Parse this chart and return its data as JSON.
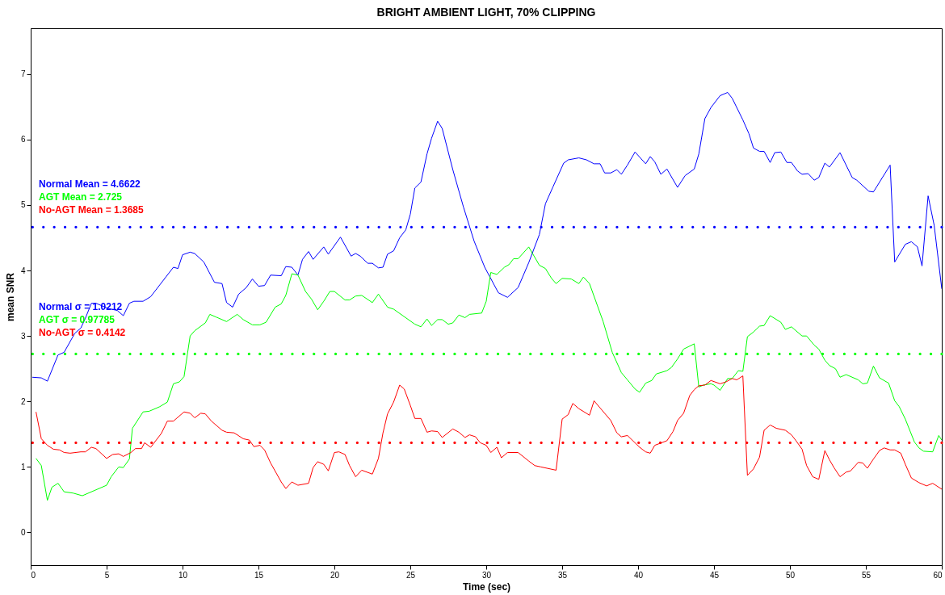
{
  "chart_data": {
    "type": "line",
    "title": "BRIGHT AMBIENT LIGHT, 70% CLIPPING",
    "xlabel": "Time (sec)",
    "ylabel": "mean SNR",
    "xlim": [
      0,
      60
    ],
    "ylim": [
      -0.5,
      7.7
    ],
    "xticks": [
      0,
      5,
      10,
      15,
      20,
      25,
      30,
      35,
      40,
      45,
      50,
      55,
      60
    ],
    "yticks": [
      0,
      1,
      2,
      3,
      4,
      5,
      6,
      7
    ],
    "grid": false,
    "legend": false,
    "marker": "none",
    "line_style": "solid",
    "series": [
      {
        "color": "#0000ff",
        "x": [
          0.1,
          0.7,
          1.1,
          1.8,
          2.2,
          2.9,
          3.3,
          3.6,
          4.0,
          4.3,
          5.1,
          5.7,
          6.1,
          6.5,
          6.8,
          7.4,
          7.9,
          8.5,
          9.4,
          9.7,
          10.0,
          10.5,
          10.8,
          11.4,
          12.1,
          12.6,
          12.9,
          13.3,
          13.7,
          14.2,
          14.6,
          15.0,
          15.4,
          15.8,
          16.5,
          16.8,
          17.2,
          17.6,
          17.9,
          18.3,
          18.6,
          19.3,
          19.6,
          20.4,
          21.1,
          21.4,
          21.7,
          22.2,
          22.5,
          22.9,
          23.2,
          23.5,
          23.9,
          24.3,
          24.7,
          25.0,
          25.3,
          25.7,
          26.1,
          26.4,
          26.8,
          27.1,
          27.8,
          28.5,
          29.2,
          29.9,
          30.8,
          31.4,
          32.1,
          32.8,
          33.5,
          33.9,
          34.4,
          35.1,
          35.4,
          36.1,
          36.6,
          37.1,
          37.5,
          37.8,
          38.2,
          38.6,
          38.9,
          39.3,
          39.8,
          40.5,
          40.8,
          41.1,
          41.5,
          41.9,
          42.6,
          43.1,
          43.7,
          44.0,
          44.4,
          44.8,
          45.4,
          45.9,
          46.2,
          46.9,
          47.3,
          47.6,
          48.0,
          48.3,
          48.7,
          49.0,
          49.4,
          49.8,
          50.1,
          50.5,
          50.8,
          51.2,
          51.6,
          51.9,
          52.3,
          52.6,
          53.3,
          54.1,
          54.4,
          55.2,
          55.5,
          56.6,
          56.9,
          57.6,
          58.0,
          58.4,
          58.7,
          59.1,
          59.5,
          60
        ],
        "values": [
          2.37,
          2.36,
          2.31,
          2.71,
          2.75,
          3.04,
          3.12,
          3.27,
          3.5,
          3.5,
          3.42,
          3.39,
          3.31,
          3.5,
          3.53,
          3.53,
          3.6,
          3.78,
          4.05,
          4.03,
          4.24,
          4.28,
          4.26,
          4.13,
          3.82,
          3.8,
          3.51,
          3.44,
          3.64,
          3.74,
          3.87,
          3.76,
          3.77,
          3.93,
          3.92,
          4.06,
          4.05,
          3.93,
          4.17,
          4.29,
          4.17,
          4.36,
          4.25,
          4.51,
          4.22,
          4.26,
          4.22,
          4.11,
          4.11,
          4.04,
          4.05,
          4.25,
          4.3,
          4.5,
          4.62,
          4.86,
          5.26,
          5.35,
          5.78,
          6.02,
          6.28,
          6.17,
          5.54,
          4.97,
          4.45,
          4.05,
          3.66,
          3.59,
          3.74,
          4.12,
          4.55,
          5.02,
          5.28,
          5.64,
          5.69,
          5.72,
          5.69,
          5.63,
          5.63,
          5.49,
          5.49,
          5.54,
          5.47,
          5.61,
          5.81,
          5.63,
          5.74,
          5.66,
          5.47,
          5.55,
          5.27,
          5.45,
          5.55,
          5.78,
          6.32,
          6.49,
          6.67,
          6.72,
          6.63,
          6.3,
          6.09,
          5.87,
          5.82,
          5.82,
          5.65,
          5.8,
          5.81,
          5.65,
          5.65,
          5.52,
          5.47,
          5.48,
          5.38,
          5.42,
          5.64,
          5.58,
          5.8,
          5.42,
          5.38,
          5.21,
          5.2,
          5.61,
          4.13,
          4.4,
          4.44,
          4.36,
          4.07,
          5.14,
          4.69,
          3.72
        ]
      },
      {
        "color": "#00ff00",
        "x": [
          0.35,
          0.7,
          1.1,
          1.4,
          1.8,
          2.2,
          2.8,
          3.4,
          4.2,
          5.0,
          5.3,
          5.8,
          6.1,
          6.5,
          6.7,
          7.4,
          7.8,
          8.5,
          9.0,
          9.4,
          9.8,
          10.1,
          10.5,
          10.8,
          11.5,
          11.8,
          12.2,
          12.9,
          13.6,
          14.0,
          14.6,
          15.1,
          15.5,
          16.1,
          16.5,
          16.8,
          17.2,
          17.6,
          18.1,
          18.5,
          18.9,
          19.3,
          19.7,
          20.0,
          20.7,
          21.0,
          21.4,
          21.8,
          22.5,
          22.9,
          23.5,
          23.9,
          25.3,
          25.7,
          26.1,
          26.4,
          26.8,
          27.1,
          27.5,
          27.8,
          28.2,
          28.6,
          28.9,
          29.7,
          30.0,
          30.3,
          30.7,
          31.2,
          31.5,
          31.8,
          32.1,
          32.8,
          33.5,
          33.9,
          34.3,
          34.6,
          35.0,
          35.6,
          36.1,
          36.4,
          36.8,
          37.7,
          38.3,
          38.9,
          39.3,
          39.8,
          40.1,
          40.5,
          40.9,
          41.2,
          41.9,
          42.2,
          42.6,
          43.0,
          43.7,
          44.0,
          44.3,
          44.8,
          45.0,
          45.4,
          45.9,
          46.2,
          46.6,
          46.9,
          47.2,
          47.6,
          48.0,
          48.3,
          48.7,
          49.4,
          49.7,
          50.1,
          50.8,
          51.1,
          51.6,
          51.9,
          52.3,
          52.6,
          53.0,
          53.3,
          53.7,
          54.5,
          54.8,
          55.1,
          55.5,
          55.9,
          56.5,
          56.9,
          57.2,
          57.6,
          58.2,
          58.5,
          58.8,
          59.4,
          59.8,
          60
        ],
        "values": [
          1.13,
          1.02,
          0.49,
          0.69,
          0.75,
          0.62,
          0.6,
          0.56,
          0.64,
          0.72,
          0.85,
          1.0,
          0.99,
          1.12,
          1.59,
          1.84,
          1.85,
          1.92,
          1.99,
          2.27,
          2.3,
          2.38,
          3.0,
          3.08,
          3.2,
          3.33,
          3.29,
          3.22,
          3.33,
          3.25,
          3.17,
          3.17,
          3.21,
          3.44,
          3.49,
          3.62,
          3.95,
          3.93,
          3.68,
          3.56,
          3.4,
          3.53,
          3.68,
          3.68,
          3.55,
          3.55,
          3.61,
          3.62,
          3.51,
          3.64,
          3.44,
          3.41,
          3.18,
          3.14,
          3.26,
          3.16,
          3.25,
          3.25,
          3.18,
          3.2,
          3.32,
          3.28,
          3.33,
          3.35,
          3.53,
          3.97,
          3.94,
          4.05,
          4.09,
          4.18,
          4.18,
          4.36,
          4.08,
          4.03,
          3.88,
          3.8,
          3.88,
          3.87,
          3.8,
          3.9,
          3.8,
          3.22,
          2.75,
          2.44,
          2.33,
          2.19,
          2.14,
          2.28,
          2.32,
          2.42,
          2.47,
          2.52,
          2.65,
          2.8,
          2.88,
          2.22,
          2.25,
          2.27,
          2.25,
          2.17,
          2.35,
          2.35,
          2.47,
          2.46,
          2.99,
          3.06,
          3.15,
          3.16,
          3.31,
          3.21,
          3.1,
          3.14,
          3.0,
          3.0,
          2.86,
          2.8,
          2.63,
          2.55,
          2.5,
          2.37,
          2.41,
          2.33,
          2.27,
          2.28,
          2.54,
          2.36,
          2.28,
          2.01,
          1.92,
          1.73,
          1.38,
          1.29,
          1.24,
          1.23,
          1.48,
          1.41
        ]
      },
      {
        "color": "#ff0000",
        "x": [
          0.35,
          0.7,
          1.1,
          1.5,
          1.9,
          2.2,
          2.6,
          3.3,
          3.6,
          4.0,
          4.3,
          5.0,
          5.4,
          5.8,
          6.1,
          6.6,
          6.9,
          7.3,
          7.5,
          7.9,
          8.6,
          9.0,
          9.4,
          10.1,
          10.5,
          10.8,
          11.2,
          11.5,
          11.9,
          12.6,
          12.9,
          13.4,
          14.0,
          14.4,
          14.7,
          15.1,
          15.4,
          15.8,
          16.5,
          16.8,
          17.2,
          17.6,
          18.3,
          18.6,
          18.9,
          19.3,
          19.6,
          20.0,
          20.3,
          20.7,
          21.0,
          21.4,
          21.8,
          22.5,
          22.9,
          23.2,
          23.5,
          23.9,
          24.3,
          24.6,
          25.0,
          25.3,
          25.7,
          26.1,
          26.4,
          26.8,
          27.1,
          27.8,
          28.2,
          28.6,
          28.9,
          29.3,
          29.6,
          30.0,
          30.3,
          30.7,
          31.0,
          31.4,
          32.1,
          32.8,
          33.2,
          33.6,
          34.6,
          35.0,
          35.4,
          35.7,
          36.1,
          36.8,
          37.1,
          38.2,
          38.6,
          38.9,
          39.3,
          40.1,
          40.5,
          40.8,
          41.1,
          41.9,
          42.3,
          42.6,
          43.0,
          43.4,
          43.7,
          44.0,
          44.4,
          44.8,
          45.4,
          45.8,
          46.2,
          46.5,
          46.9,
          47.2,
          47.6,
          48.0,
          48.3,
          48.7,
          49.1,
          49.7,
          50.1,
          50.4,
          50.8,
          51.1,
          51.5,
          51.9,
          52.3,
          52.6,
          52.9,
          53.3,
          53.7,
          54.0,
          54.5,
          54.8,
          55.1,
          55.5,
          55.9,
          56.2,
          56.6,
          56.9,
          57.3,
          57.6,
          58.0,
          58.5,
          59.0,
          59.4,
          60
        ],
        "values": [
          1.84,
          1.43,
          1.33,
          1.27,
          1.26,
          1.22,
          1.21,
          1.23,
          1.23,
          1.3,
          1.28,
          1.13,
          1.19,
          1.2,
          1.16,
          1.22,
          1.28,
          1.28,
          1.37,
          1.3,
          1.51,
          1.7,
          1.7,
          1.84,
          1.82,
          1.75,
          1.82,
          1.81,
          1.7,
          1.56,
          1.53,
          1.52,
          1.43,
          1.41,
          1.31,
          1.33,
          1.26,
          1.06,
          0.77,
          0.67,
          0.77,
          0.72,
          0.75,
          0.99,
          1.08,
          1.04,
          0.94,
          1.22,
          1.23,
          1.19,
          1.02,
          0.85,
          0.95,
          0.89,
          1.13,
          1.52,
          1.81,
          1.99,
          2.25,
          2.19,
          1.94,
          1.74,
          1.74,
          1.53,
          1.55,
          1.54,
          1.45,
          1.58,
          1.53,
          1.45,
          1.49,
          1.46,
          1.37,
          1.33,
          1.22,
          1.3,
          1.14,
          1.22,
          1.22,
          1.09,
          1.02,
          1.0,
          0.95,
          1.73,
          1.8,
          1.97,
          1.89,
          1.79,
          2.01,
          1.71,
          1.52,
          1.46,
          1.48,
          1.3,
          1.23,
          1.21,
          1.33,
          1.4,
          1.54,
          1.71,
          1.82,
          2.09,
          2.18,
          2.24,
          2.25,
          2.32,
          2.27,
          2.3,
          2.35,
          2.33,
          2.39,
          0.87,
          0.97,
          1.15,
          1.56,
          1.64,
          1.59,
          1.56,
          1.49,
          1.4,
          1.27,
          1.02,
          0.85,
          0.81,
          1.25,
          1.11,
          0.99,
          0.85,
          0.92,
          0.94,
          1.07,
          1.06,
          0.98,
          1.12,
          1.25,
          1.29,
          1.26,
          1.26,
          1.21,
          1.04,
          0.83,
          0.76,
          0.71,
          0.75,
          0.66
        ]
      }
    ],
    "ref_lines": [
      {
        "axis": "y",
        "value": 4.6622,
        "color": "#0000ff",
        "line_style": "dotted"
      },
      {
        "axis": "y",
        "value": 2.725,
        "color": "#00ff00",
        "line_style": "dotted"
      },
      {
        "axis": "y",
        "value": 1.3685,
        "color": "#ff0000",
        "line_style": "dotted"
      }
    ],
    "annotations": [
      "Normal Mean = 4.6622",
      "AGT Mean = 2.725",
      "No-AGT Mean = 1.3685",
      "Normal σ = 1.0212",
      "AGT σ = 0.97785",
      "No-AGT σ = 0.4142"
    ]
  }
}
